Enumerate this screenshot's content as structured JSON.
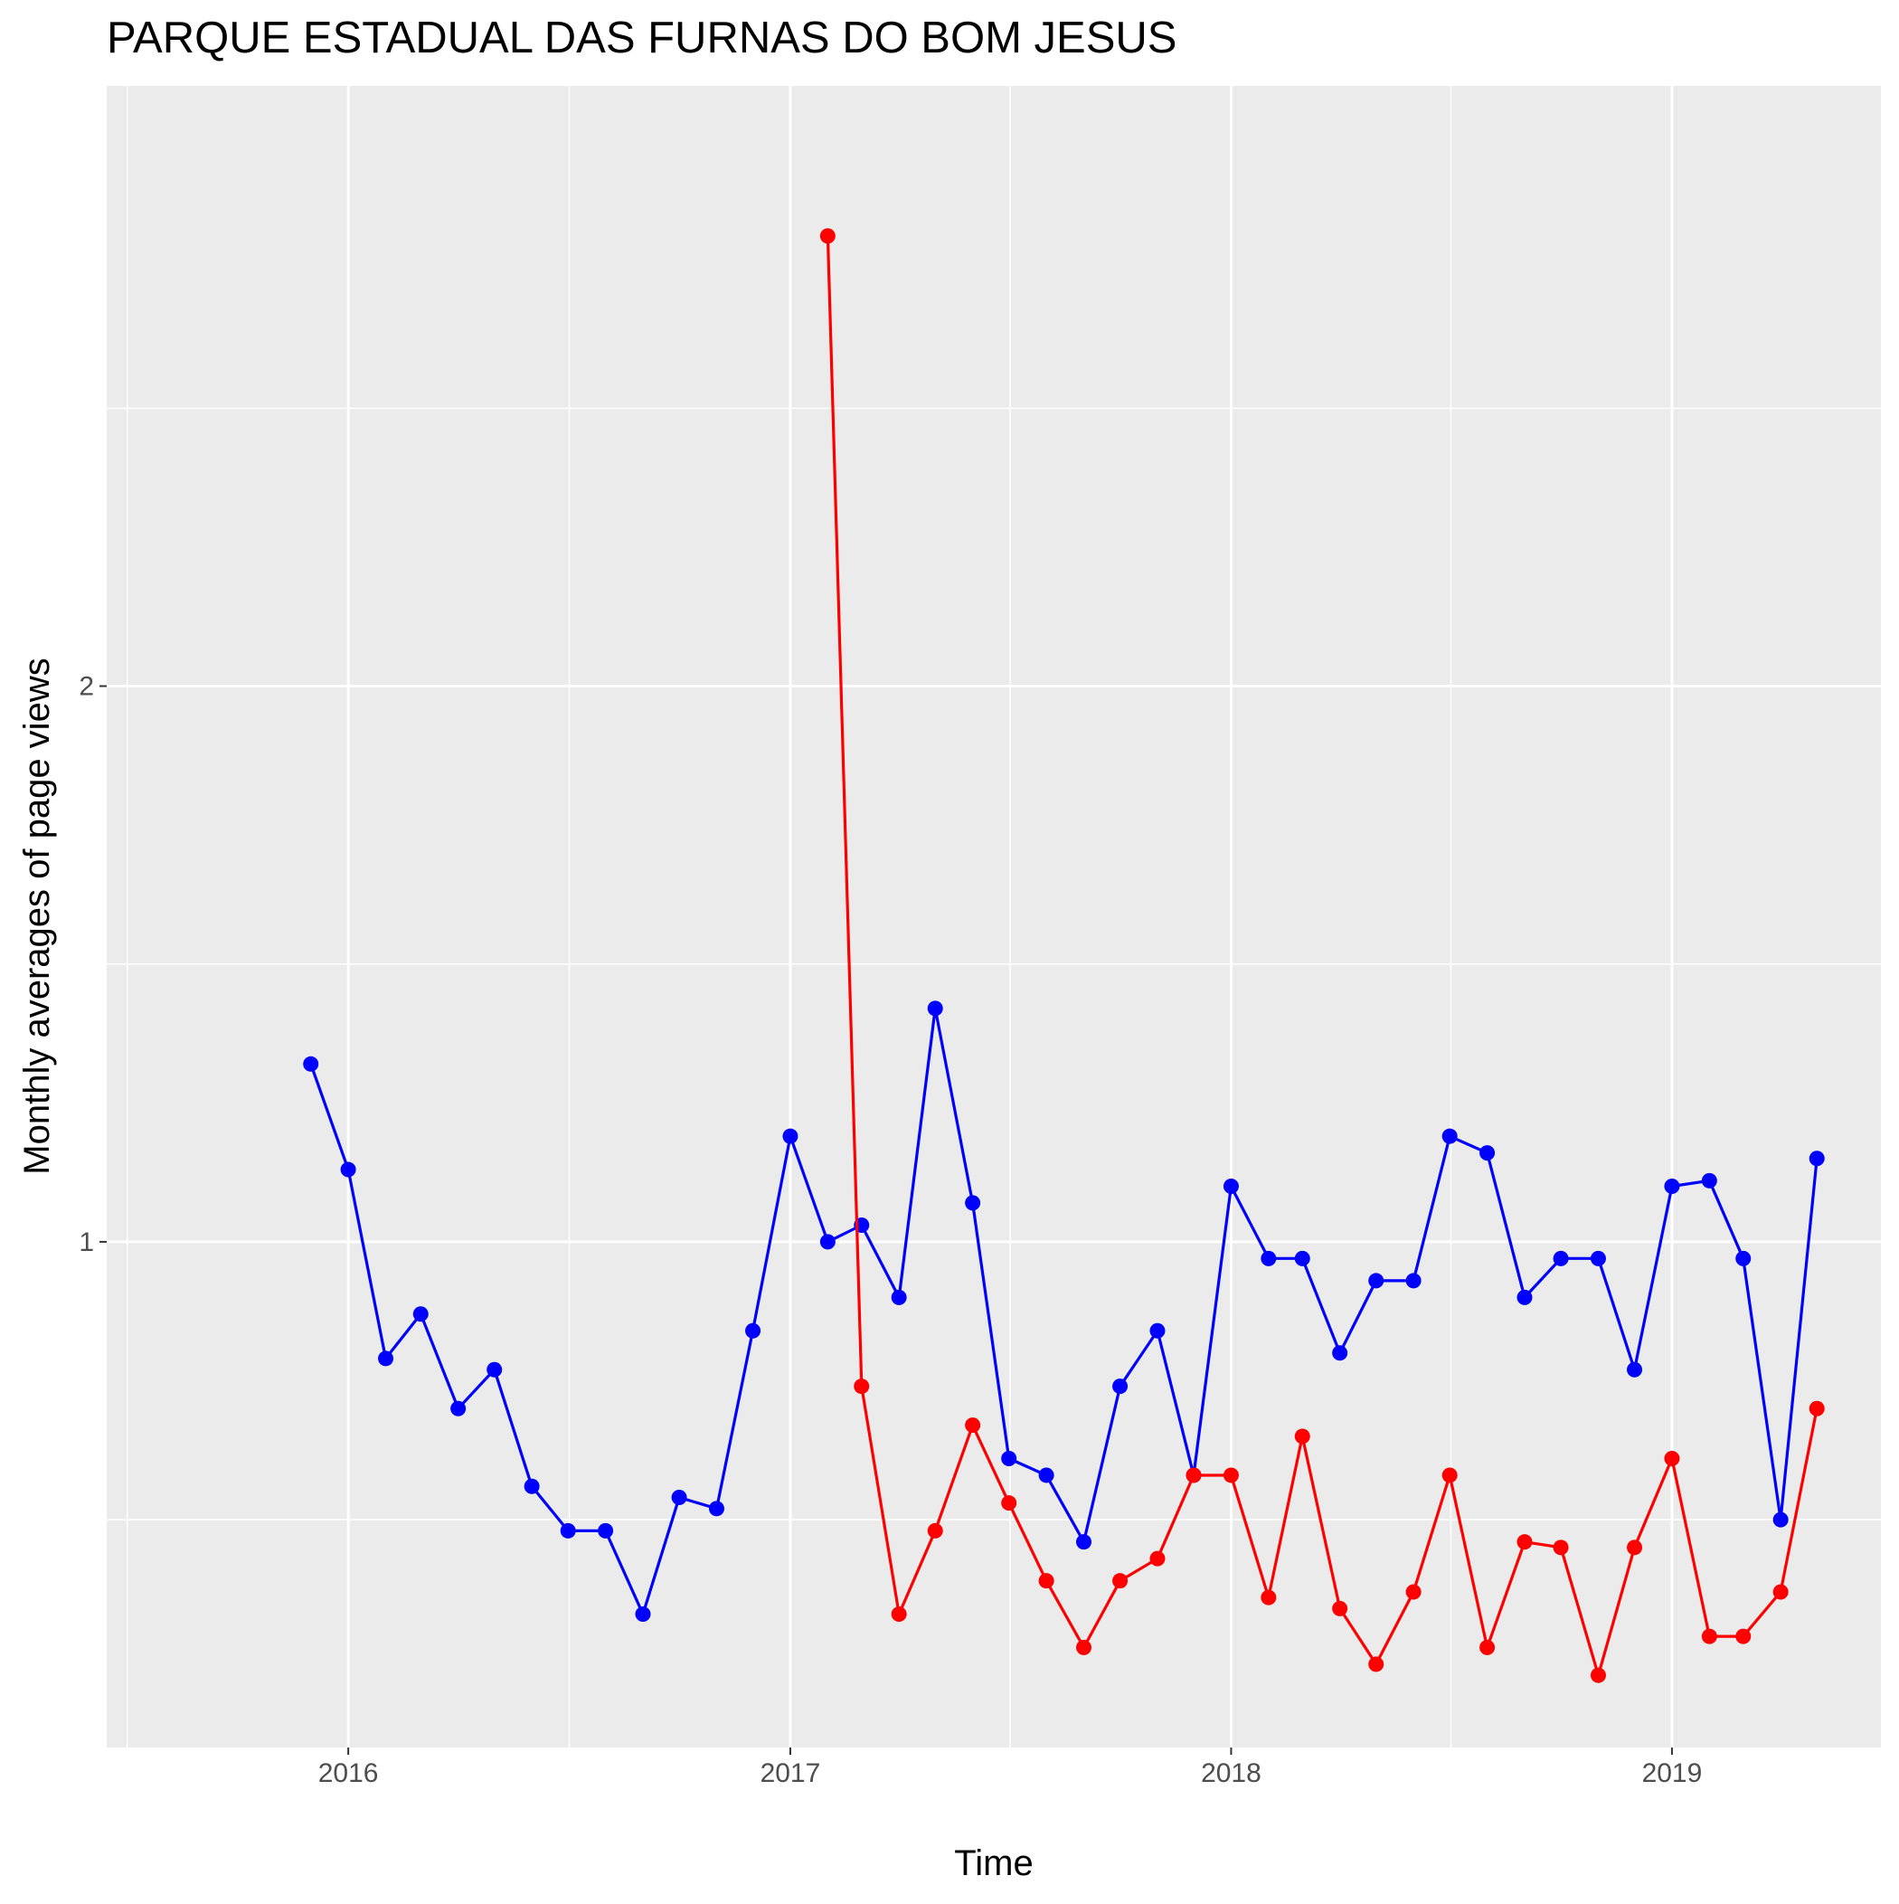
{
  "chart_data": {
    "type": "line",
    "title": "PARQUE ESTADUAL DAS FURNAS DO BOM JESUS",
    "xlabel": "Time",
    "ylabel": "Monthly averages of page views",
    "xlim": [
      "2015-06-15",
      "2019-06-23"
    ],
    "ylim": [
      0.09,
      3.08
    ],
    "x_ticks": [
      "2016",
      "2017",
      "2018",
      "2019"
    ],
    "y_ticks": [
      "1",
      "2"
    ],
    "grid": true,
    "legend": "none",
    "series": [
      {
        "color": "#0000ff",
        "points": [
          [
            "2015-12-01",
            1.32
          ],
          [
            "2016-01-01",
            1.13
          ],
          [
            "2016-02-01",
            0.79
          ],
          [
            "2016-03-01",
            0.87
          ],
          [
            "2016-04-01",
            0.7
          ],
          [
            "2016-05-01",
            0.77
          ],
          [
            "2016-06-01",
            0.56
          ],
          [
            "2016-07-01",
            0.48
          ],
          [
            "2016-08-01",
            0.48
          ],
          [
            "2016-09-01",
            0.33
          ],
          [
            "2016-10-01",
            0.54
          ],
          [
            "2016-11-01",
            0.52
          ],
          [
            "2016-12-01",
            0.84
          ],
          [
            "2017-01-01",
            1.19
          ],
          [
            "2017-02-01",
            1.0
          ],
          [
            "2017-03-01",
            1.03
          ],
          [
            "2017-04-01",
            0.9
          ],
          [
            "2017-05-01",
            1.42
          ],
          [
            "2017-06-01",
            1.07
          ],
          [
            "2017-07-01",
            0.61
          ],
          [
            "2017-08-01",
            0.58
          ],
          [
            "2017-09-01",
            0.46
          ],
          [
            "2017-10-01",
            0.74
          ],
          [
            "2017-11-01",
            0.84
          ],
          [
            "2017-12-01",
            0.58
          ],
          [
            "2018-01-01",
            1.1
          ],
          [
            "2018-02-01",
            0.97
          ],
          [
            "2018-03-01",
            0.97
          ],
          [
            "2018-04-01",
            0.8
          ],
          [
            "2018-05-01",
            0.93
          ],
          [
            "2018-06-01",
            0.93
          ],
          [
            "2018-07-01",
            1.19
          ],
          [
            "2018-08-01",
            1.16
          ],
          [
            "2018-09-01",
            0.9
          ],
          [
            "2018-10-01",
            0.97
          ],
          [
            "2018-11-01",
            0.97
          ],
          [
            "2018-12-01",
            0.77
          ],
          [
            "2019-01-01",
            1.1
          ],
          [
            "2019-02-01",
            1.11
          ],
          [
            "2019-03-01",
            0.97
          ],
          [
            "2019-04-01",
            0.5
          ],
          [
            "2019-05-01",
            1.15
          ]
        ]
      },
      {
        "color": "#ff0000",
        "points": [
          [
            "2017-02-01",
            2.81
          ],
          [
            "2017-03-01",
            0.74
          ],
          [
            "2017-04-01",
            0.33
          ],
          [
            "2017-05-01",
            0.48
          ],
          [
            "2017-06-01",
            0.67
          ],
          [
            "2017-07-01",
            0.53
          ],
          [
            "2017-08-01",
            0.39
          ],
          [
            "2017-09-01",
            0.27
          ],
          [
            "2017-10-01",
            0.39
          ],
          [
            "2017-11-01",
            0.43
          ],
          [
            "2017-12-01",
            0.58
          ],
          [
            "2018-01-01",
            0.58
          ],
          [
            "2018-02-01",
            0.36
          ],
          [
            "2018-03-01",
            0.65
          ],
          [
            "2018-04-01",
            0.34
          ],
          [
            "2018-05-01",
            0.24
          ],
          [
            "2018-06-01",
            0.37
          ],
          [
            "2018-07-01",
            0.58
          ],
          [
            "2018-08-01",
            0.27
          ],
          [
            "2018-09-01",
            0.46
          ],
          [
            "2018-10-01",
            0.45
          ],
          [
            "2018-11-01",
            0.22
          ],
          [
            "2018-12-01",
            0.45
          ],
          [
            "2019-01-01",
            0.61
          ],
          [
            "2019-02-01",
            0.29
          ],
          [
            "2019-03-01",
            0.29
          ],
          [
            "2019-04-01",
            0.37
          ],
          [
            "2019-05-01",
            0.7
          ]
        ]
      }
    ]
  }
}
